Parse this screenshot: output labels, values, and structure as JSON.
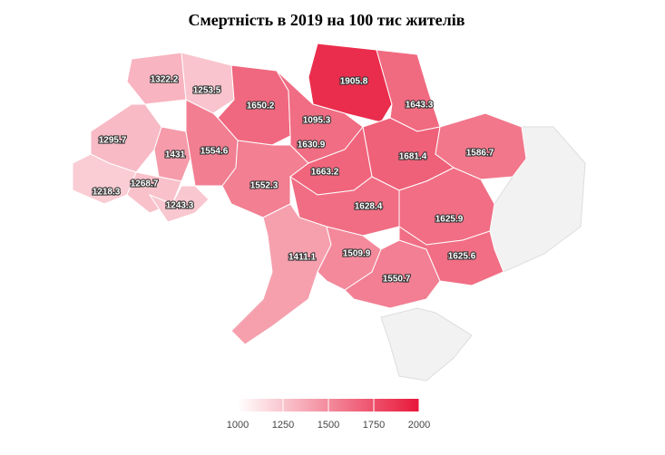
{
  "chart_data": {
    "type": "choropleth",
    "title": "Смертність в 2019 на 100 тис жителів",
    "values": [
      1322.2,
      1253.5,
      1295.7,
      1431,
      1268.7,
      1218.3,
      1243.3,
      1650.2,
      1554.6,
      1552.3,
      1905.8,
      1095.3,
      1630.9,
      1643.3,
      1681.4,
      1586.7,
      1663.2,
      1628.4,
      1625.9,
      1411.1,
      1509.9,
      1550.7,
      1625.6
    ],
    "colors": [
      "#ffffff",
      "#e8173a"
    ],
    "colorlim": [
      1000,
      2000
    ],
    "ticks": [
      1000,
      1250,
      1500,
      1750,
      2000
    ],
    "nodata_color": "#f2f2f2"
  }
}
